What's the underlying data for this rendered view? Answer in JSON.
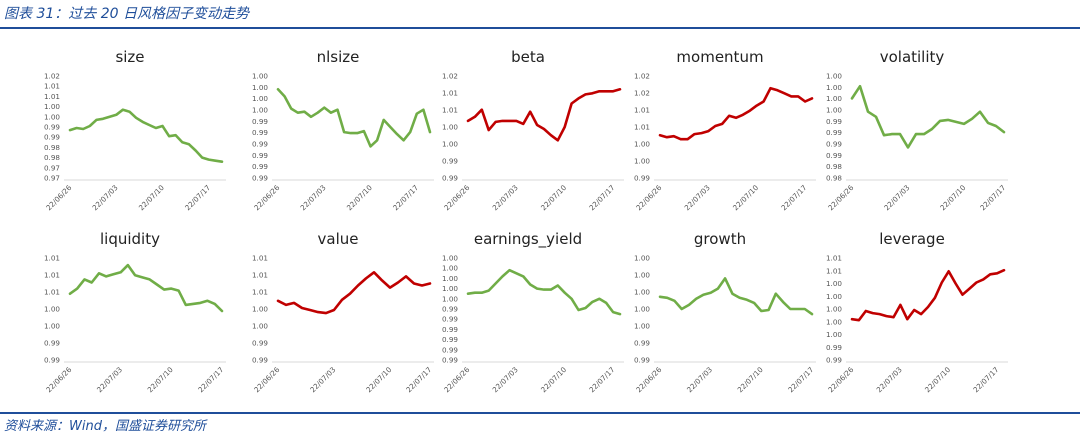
{
  "header": {
    "title": "图表 31：过去 20 日风格因子变动走势"
  },
  "source": "资料来源：Wind，国盛证券研究所",
  "colors": {
    "up": "#c00000",
    "down": "#70ad47",
    "accent": "#1f4e9a"
  },
  "chart_data": [
    {
      "type": "line",
      "title": "size",
      "color": "#70ad47",
      "yticks": [
        "1.02",
        "1.01",
        "1.01",
        "1.00",
        "1.00",
        "0.99",
        "0.99",
        "0.98",
        "0.98",
        "0.97",
        "0.97"
      ],
      "xticks": [
        "22/06/26",
        "22/07/03",
        "22/07/10",
        "22/07/17"
      ],
      "values": [
        0.53,
        0.51,
        0.52,
        0.49,
        0.43,
        0.42,
        0.4,
        0.38,
        0.33,
        0.35,
        0.41,
        0.45,
        0.48,
        0.51,
        0.49,
        0.59,
        0.58,
        0.65,
        0.67,
        0.73,
        0.8,
        0.82,
        0.83,
        0.84
      ]
    },
    {
      "type": "line",
      "title": "nlsize",
      "color": "#70ad47",
      "yticks": [
        "1.00",
        "1.00",
        "1.00",
        "1.00",
        "0.99",
        "0.99",
        "0.99",
        "0.99",
        "0.99",
        "0.99"
      ],
      "xticks": [
        "22/06/26",
        "22/07/03",
        "22/07/10",
        "22/07/17"
      ],
      "values": [
        0.13,
        0.2,
        0.32,
        0.36,
        0.35,
        0.4,
        0.36,
        0.31,
        0.36,
        0.33,
        0.55,
        0.56,
        0.56,
        0.54,
        0.69,
        0.63,
        0.43,
        0.5,
        0.57,
        0.63,
        0.55,
        0.37,
        0.33,
        0.55
      ]
    },
    {
      "type": "line",
      "title": "beta",
      "color": "#c00000",
      "yticks": [
        "1.02",
        "1.01",
        "1.01",
        "1.00",
        "1.00",
        "0.99",
        "0.99"
      ],
      "xticks": [
        "22/06/26",
        "22/07/03",
        "22/07/10",
        "22/07/17"
      ],
      "values": [
        0.44,
        0.4,
        0.33,
        0.53,
        0.45,
        0.44,
        0.44,
        0.44,
        0.47,
        0.35,
        0.48,
        0.52,
        0.58,
        0.63,
        0.5,
        0.27,
        0.22,
        0.18,
        0.17,
        0.15,
        0.15,
        0.15,
        0.13
      ]
    },
    {
      "type": "line",
      "title": "momentum",
      "color": "#c00000",
      "yticks": [
        "1.02",
        "1.02",
        "1.01",
        "1.01",
        "1.00",
        "1.00",
        "0.99"
      ],
      "xticks": [
        "22/06/26",
        "22/07/03",
        "22/07/10",
        "22/07/17"
      ],
      "values": [
        0.58,
        0.6,
        0.59,
        0.62,
        0.62,
        0.57,
        0.56,
        0.54,
        0.49,
        0.47,
        0.39,
        0.41,
        0.38,
        0.34,
        0.29,
        0.25,
        0.12,
        0.14,
        0.17,
        0.2,
        0.2,
        0.25,
        0.22
      ]
    },
    {
      "type": "line",
      "title": "volatility",
      "color": "#70ad47",
      "yticks": [
        "1.00",
        "1.00",
        "1.00",
        "1.00",
        "0.99",
        "0.99",
        "0.99",
        "0.99",
        "0.98",
        "0.98"
      ],
      "xticks": [
        "22/06/26",
        "22/07/03",
        "22/07/10",
        "22/07/17"
      ],
      "values": [
        0.22,
        0.1,
        0.35,
        0.4,
        0.58,
        0.57,
        0.57,
        0.7,
        0.57,
        0.57,
        0.52,
        0.44,
        0.43,
        0.45,
        0.47,
        0.42,
        0.35,
        0.46,
        0.49,
        0.55
      ]
    },
    {
      "type": "line",
      "title": "liquidity",
      "color": "#70ad47",
      "yticks": [
        "1.01",
        "1.01",
        "1.01",
        "1.00",
        "1.00",
        "0.99",
        "0.99"
      ],
      "xticks": [
        "22/06/26",
        "22/07/03",
        "22/07/10",
        "22/07/17"
      ],
      "values": [
        0.35,
        0.3,
        0.21,
        0.24,
        0.15,
        0.18,
        0.16,
        0.14,
        0.07,
        0.17,
        0.19,
        0.21,
        0.26,
        0.31,
        0.3,
        0.32,
        0.46,
        0.45,
        0.44,
        0.42,
        0.45,
        0.52
      ]
    },
    {
      "type": "line",
      "title": "value",
      "color": "#c00000",
      "yticks": [
        "1.01",
        "1.01",
        "1.01",
        "1.00",
        "1.00",
        "0.99",
        "0.99"
      ],
      "xticks": [
        "22/06/26",
        "22/07/03",
        "22/07/10",
        "22/07/17"
      ],
      "values": [
        0.42,
        0.46,
        0.44,
        0.49,
        0.51,
        0.53,
        0.54,
        0.51,
        0.41,
        0.35,
        0.27,
        0.2,
        0.14,
        0.22,
        0.29,
        0.24,
        0.18,
        0.25,
        0.27,
        0.25
      ]
    },
    {
      "type": "line",
      "title": "earnings_yield",
      "color": "#70ad47",
      "yticks": [
        "1.00",
        "1.00",
        "1.00",
        "1.00",
        "1.00",
        "0.99",
        "0.99",
        "0.99",
        "0.99",
        "0.99",
        "0.99"
      ],
      "xticks": [
        "22/06/26",
        "22/07/03",
        "22/07/10",
        "22/07/17"
      ],
      "values": [
        0.35,
        0.34,
        0.34,
        0.32,
        0.25,
        0.18,
        0.12,
        0.15,
        0.18,
        0.26,
        0.3,
        0.31,
        0.31,
        0.27,
        0.34,
        0.4,
        0.51,
        0.49,
        0.43,
        0.4,
        0.44,
        0.53,
        0.55
      ]
    },
    {
      "type": "line",
      "title": "growth",
      "color": "#70ad47",
      "yticks": [
        "1.00",
        "1.00",
        "1.00",
        "1.00",
        "1.00",
        "0.99",
        "0.99"
      ],
      "xticks": [
        "22/06/26",
        "22/07/03",
        "22/07/10",
        "22/07/17"
      ],
      "values": [
        0.38,
        0.39,
        0.42,
        0.5,
        0.46,
        0.4,
        0.36,
        0.34,
        0.3,
        0.2,
        0.35,
        0.39,
        0.41,
        0.44,
        0.52,
        0.51,
        0.35,
        0.43,
        0.5,
        0.5,
        0.5,
        0.55
      ]
    },
    {
      "type": "line",
      "title": "leverage",
      "color": "#c00000",
      "yticks": [
        "1.01",
        "1.01",
        "1.00",
        "1.00",
        "1.00",
        "1.00",
        "1.00",
        "0.99",
        "0.99"
      ],
      "xticks": [
        "22/06/26",
        "22/07/03",
        "22/07/10",
        "22/07/17"
      ],
      "values": [
        0.6,
        0.61,
        0.52,
        0.54,
        0.55,
        0.57,
        0.58,
        0.46,
        0.6,
        0.51,
        0.55,
        0.48,
        0.39,
        0.24,
        0.13,
        0.25,
        0.36,
        0.3,
        0.24,
        0.21,
        0.16,
        0.15,
        0.12
      ]
    }
  ]
}
